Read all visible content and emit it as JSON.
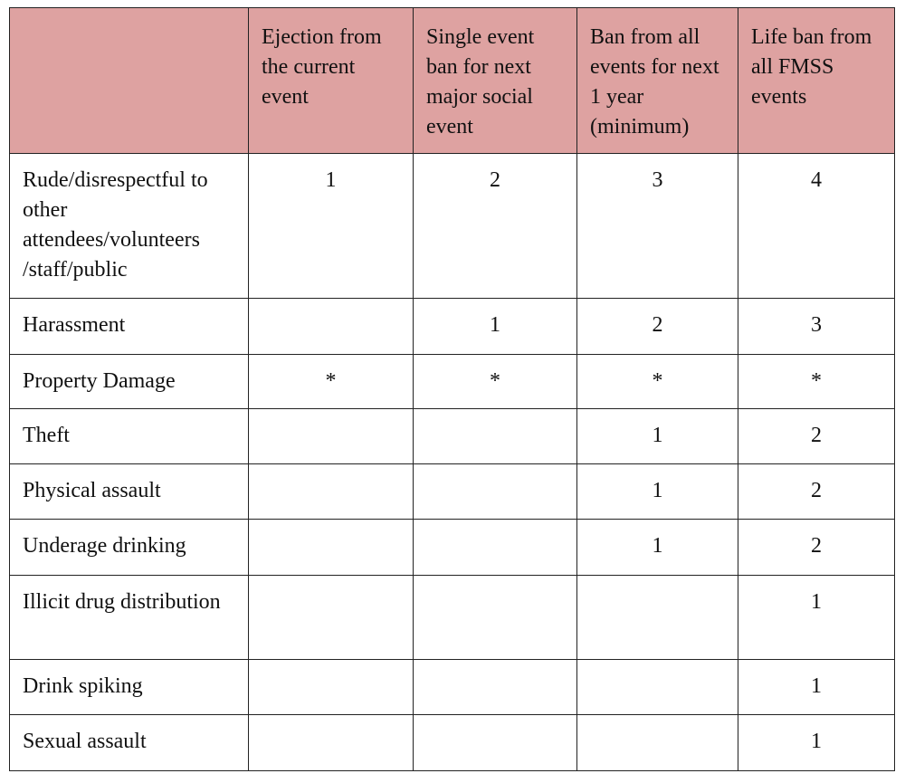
{
  "table": {
    "header": [
      "Ejection from the current event",
      "Single event ban for next major social event",
      "Ban from all events for next 1 year (minimum)",
      "Life ban from all FMSS events"
    ],
    "rows": [
      {
        "label": "Rude/disrespectful to other attendees/volunteers /staff/public",
        "cells": [
          1,
          2,
          3,
          4
        ]
      },
      {
        "label": "Harassment",
        "cells": [
          null,
          1,
          2,
          3
        ]
      },
      {
        "label": "Property Damage",
        "cells": [
          "*",
          "*",
          "*",
          "*"
        ]
      },
      {
        "label": "Theft",
        "cells": [
          null,
          null,
          1,
          2
        ]
      },
      {
        "label": "Physical assault",
        "cells": [
          null,
          null,
          1,
          2
        ]
      },
      {
        "label": "Underage drinking",
        "cells": [
          null,
          null,
          1,
          2
        ]
      },
      {
        "label": "Illicit drug distribution",
        "cells": [
          null,
          null,
          null,
          1
        ]
      },
      {
        "label": "Drink spiking",
        "cells": [
          null,
          null,
          null,
          1
        ]
      },
      {
        "label": "Sexual assault",
        "cells": [
          null,
          null,
          null,
          1
        ]
      }
    ]
  }
}
